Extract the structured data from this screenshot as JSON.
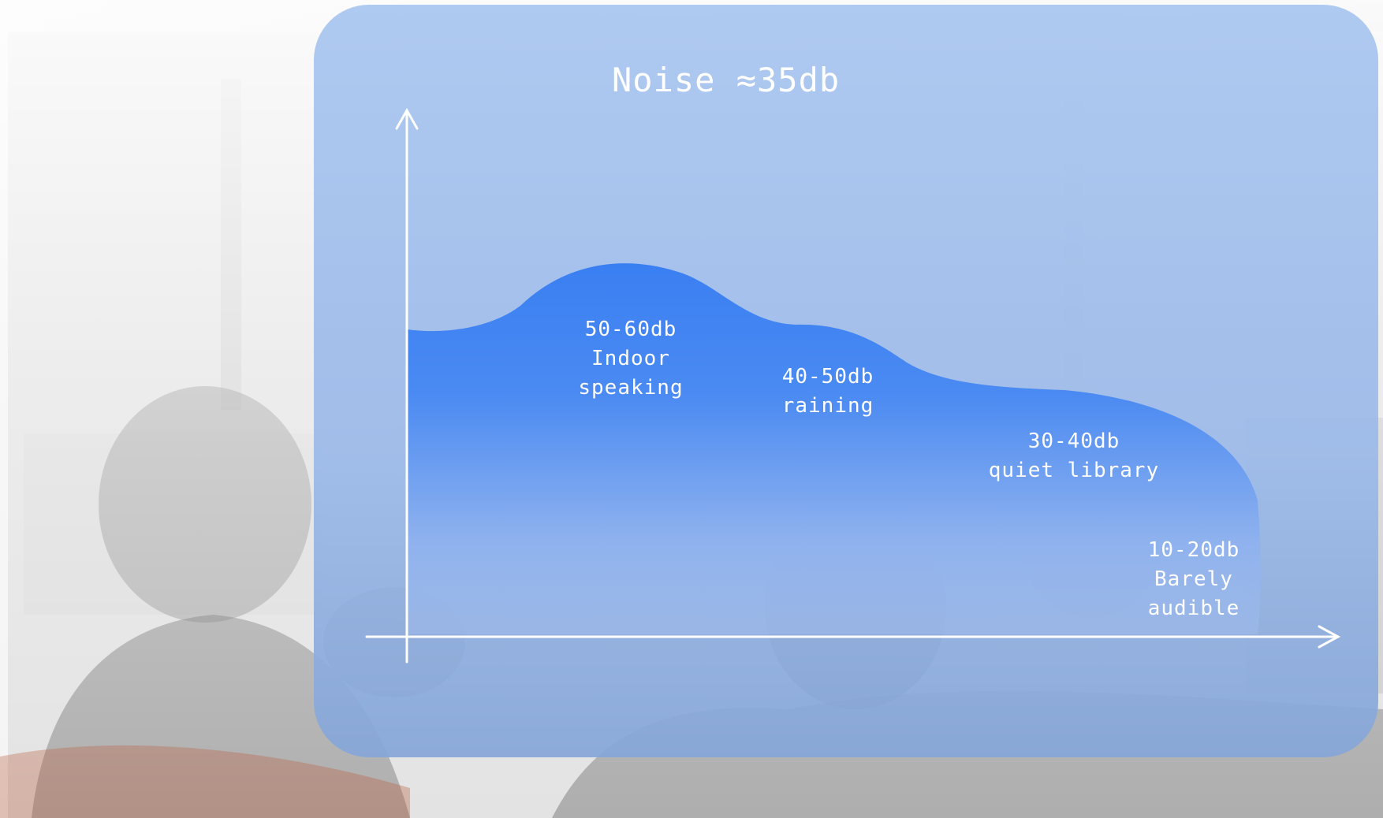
{
  "title": "Noise ≈35db",
  "levels": [
    {
      "range": "50-60db",
      "line1": "Indoor",
      "line2": "speaking"
    },
    {
      "range": "40-50db",
      "line1": "raining",
      "line2": ""
    },
    {
      "range": "30-40db",
      "line1": "quiet library",
      "line2": ""
    },
    {
      "range": "10-20db",
      "line1": "Barely",
      "line2": "audible"
    }
  ],
  "colors": {
    "panel": "#a4c2ee",
    "wave_top": "#3a7ff2",
    "wave_bottom": "#9db9ea",
    "axis": "#ffffff",
    "text": "#ffffff"
  }
}
